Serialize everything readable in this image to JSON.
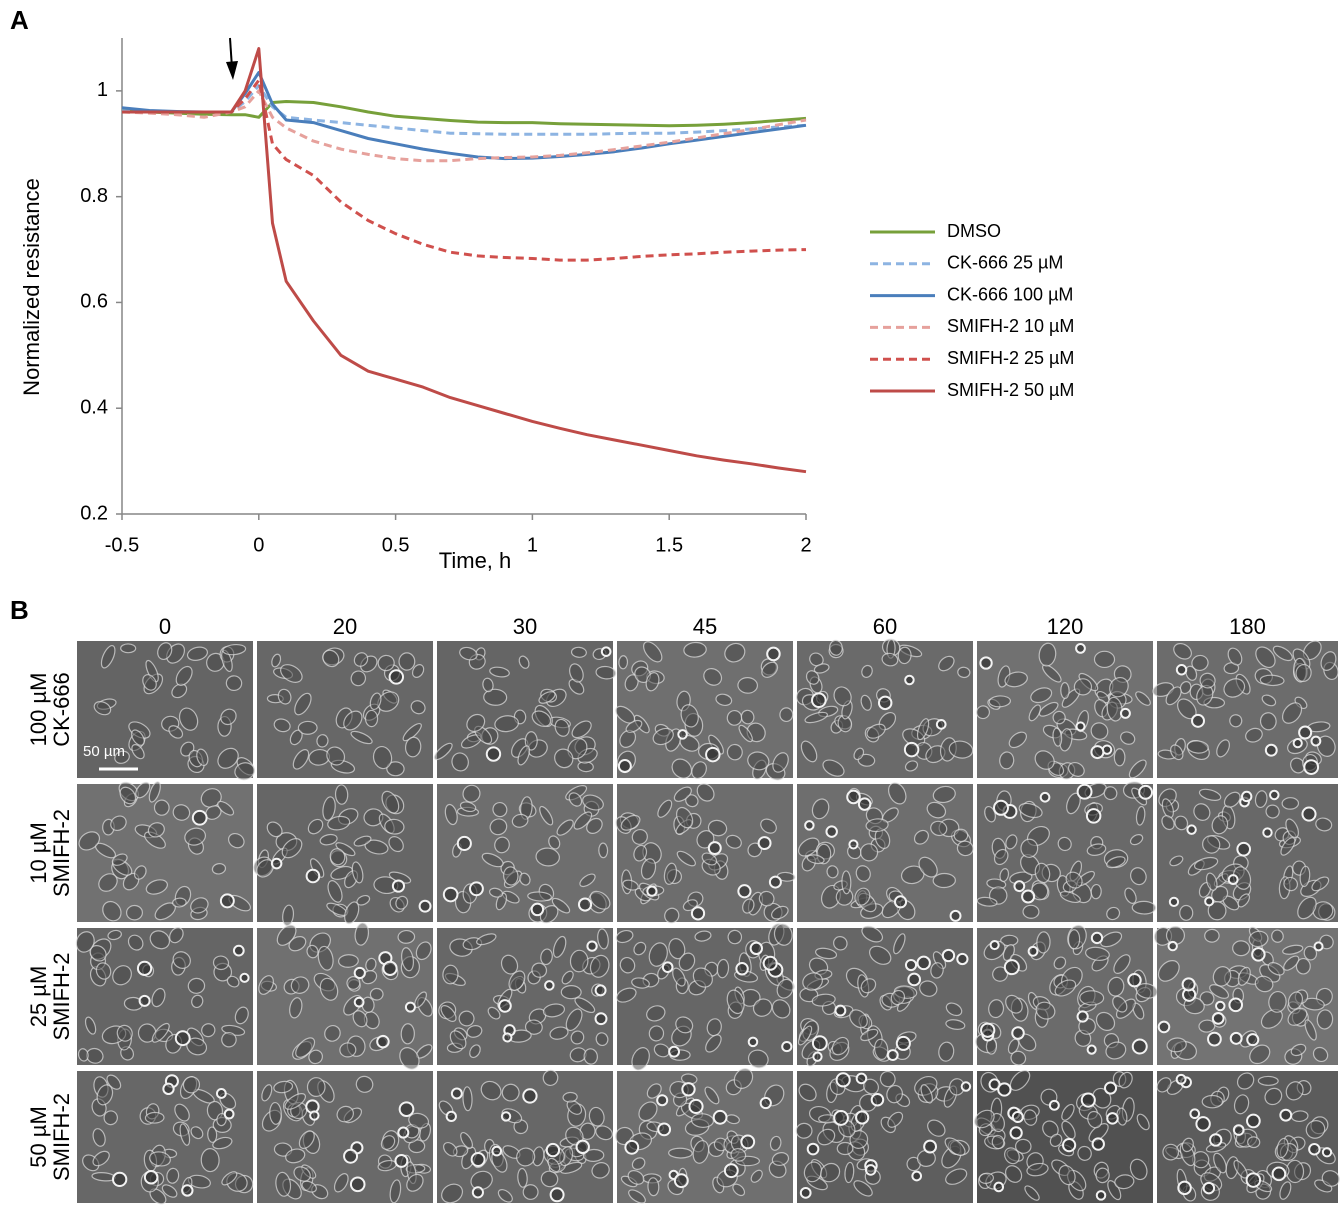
{
  "panel_labels": [
    "A",
    "B"
  ],
  "chart_data": {
    "type": "line",
    "x_label": "Time, h",
    "y_label": "Normalized resistance",
    "xlim": [
      -0.5,
      2
    ],
    "xticks": [
      -0.5,
      0,
      0.5,
      1,
      1.5,
      2
    ],
    "ylim": [
      0.2,
      1.1
    ],
    "yticks": [
      0.2,
      0.4,
      0.6,
      0.8,
      1
    ],
    "grid": false,
    "legend": "right",
    "x": [
      -0.5,
      -0.4,
      -0.3,
      -0.2,
      -0.1,
      -0.05,
      0,
      0.05,
      0.1,
      0.2,
      0.3,
      0.4,
      0.5,
      0.6,
      0.7,
      0.8,
      0.9,
      1.0,
      1.1,
      1.2,
      1.3,
      1.4,
      1.5,
      1.6,
      1.7,
      1.8,
      1.9,
      2.0
    ],
    "series": [
      {
        "name": "DMSO",
        "color": "#77a03a",
        "line_style": "solid",
        "values": [
          0.965,
          0.96,
          0.958,
          0.956,
          0.955,
          0.955,
          0.95,
          0.978,
          0.98,
          0.978,
          0.97,
          0.96,
          0.952,
          0.948,
          0.944,
          0.941,
          0.94,
          0.94,
          0.938,
          0.937,
          0.936,
          0.935,
          0.934,
          0.935,
          0.937,
          0.94,
          0.944,
          0.948
        ]
      },
      {
        "name": "CK-666 25 µM",
        "color": "#8db4e2",
        "line_style": "dashed",
        "values": [
          0.962,
          0.96,
          0.96,
          0.96,
          0.96,
          0.98,
          1.01,
          0.97,
          0.95,
          0.945,
          0.94,
          0.935,
          0.93,
          0.925,
          0.92,
          0.919,
          0.918,
          0.918,
          0.918,
          0.918,
          0.919,
          0.92,
          0.92,
          0.922,
          0.925,
          0.928,
          0.932,
          0.935
        ]
      },
      {
        "name": "CK-666 100 µM",
        "color": "#4a7ebb",
        "line_style": "solid",
        "values": [
          0.968,
          0.963,
          0.961,
          0.96,
          0.96,
          0.995,
          1.035,
          0.975,
          0.945,
          0.94,
          0.925,
          0.91,
          0.9,
          0.89,
          0.882,
          0.875,
          0.872,
          0.873,
          0.876,
          0.88,
          0.885,
          0.892,
          0.9,
          0.907,
          0.914,
          0.921,
          0.928,
          0.935
        ]
      },
      {
        "name": "SMIFH-2 10 µM",
        "color": "#e6a19c",
        "line_style": "dashed",
        "values": [
          0.96,
          0.958,
          0.955,
          0.95,
          0.96,
          0.97,
          1.0,
          0.95,
          0.93,
          0.905,
          0.89,
          0.88,
          0.872,
          0.868,
          0.868,
          0.872,
          0.874,
          0.875,
          0.878,
          0.883,
          0.889,
          0.896,
          0.903,
          0.911,
          0.919,
          0.927,
          0.936,
          0.945
        ]
      },
      {
        "name": "SMIFH-2 25 µM",
        "color": "#d0504d",
        "line_style": "dashed",
        "values": [
          0.96,
          0.96,
          0.96,
          0.96,
          0.96,
          0.985,
          1.02,
          0.9,
          0.87,
          0.84,
          0.79,
          0.755,
          0.73,
          0.71,
          0.695,
          0.688,
          0.685,
          0.683,
          0.68,
          0.68,
          0.683,
          0.687,
          0.69,
          0.692,
          0.695,
          0.697,
          0.699,
          0.7
        ]
      },
      {
        "name": "SMIFH-2 50 µM",
        "color": "#be4b48",
        "line_style": "solid",
        "values": [
          0.96,
          0.96,
          0.96,
          0.96,
          0.96,
          1.0,
          1.08,
          0.75,
          0.64,
          0.565,
          0.5,
          0.47,
          0.455,
          0.44,
          0.42,
          0.405,
          0.39,
          0.375,
          0.362,
          0.35,
          0.34,
          0.33,
          0.32,
          0.31,
          0.302,
          0.295,
          0.287,
          0.28
        ]
      }
    ]
  },
  "micrographs": {
    "columns": [
      "0",
      "20",
      "30",
      "45",
      "60",
      "120",
      "180"
    ],
    "rows": [
      [
        "100 µM",
        "CK-666"
      ],
      [
        "10 µM",
        "SMIFH-2"
      ],
      [
        "25 µM",
        "SMIFH-2"
      ],
      [
        "50 µM",
        "SMIFH-2"
      ]
    ],
    "scale_bar": "50 µm"
  }
}
